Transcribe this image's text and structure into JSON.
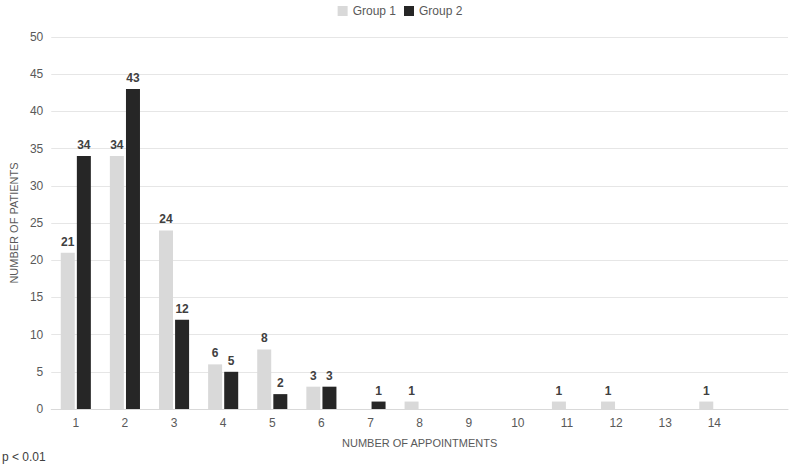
{
  "chart_data": {
    "type": "bar",
    "x_label": "NUMBER OF APPOINTMENTS",
    "y_label": "NUMBER OF PATIENTS",
    "annotations": [
      "p < 0.01"
    ],
    "categories": [
      "1",
      "2",
      "3",
      "4",
      "5",
      "6",
      "7",
      "8",
      "9",
      "10",
      "11",
      "12",
      "13",
      "14",
      null
    ],
    "series": [
      {
        "name": "Group 1",
        "color": "#d9d9d9",
        "values": [
          21,
          34,
          24,
          6,
          8,
          3,
          null,
          1,
          null,
          null,
          1,
          1,
          null,
          1,
          null
        ]
      },
      {
        "name": "Group 2",
        "color": "#262626",
        "values": [
          34,
          43,
          12,
          5,
          2,
          3,
          1,
          null,
          null,
          null,
          null,
          null,
          null,
          null,
          null
        ]
      }
    ],
    "ylim": [
      0,
      50
    ],
    "yticks": [
      0,
      5,
      10,
      15,
      20,
      25,
      30,
      35,
      40,
      45,
      50
    ],
    "grid": true,
    "legend": "top",
    "data_labels": true
  }
}
